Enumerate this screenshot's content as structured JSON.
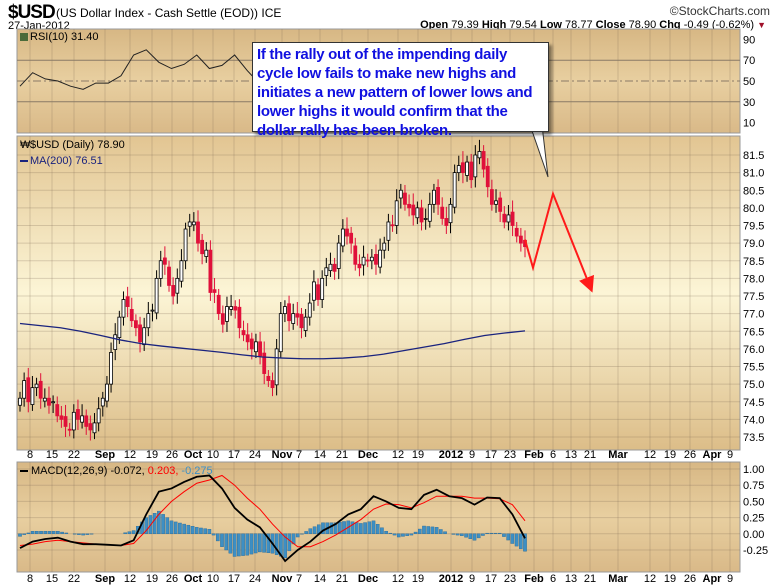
{
  "header": {
    "symbol": "$USD",
    "description": "(US Dollar Index - Cash Settle (EOD)) ICE",
    "date": "27-Jan-2012",
    "credit": "©StockCharts.com",
    "open_label": "Open",
    "open": "79.39",
    "high_label": "High",
    "high": "79.54",
    "low_label": "Low",
    "low": "78.77",
    "close_label": "Close",
    "close": "78.90",
    "chg_label": "Chg",
    "chg": "-0.49 (-0.62%)"
  },
  "annotation": {
    "text": "If the rally out of the impending daily cycle low fails to make new highs and initiates a new pattern of lower lows and lower highs it would confirm that the dollar rally has been broken.",
    "color": "#1010e0"
  },
  "chart_data": [
    {
      "type": "line",
      "panel": "rsi",
      "legend": "RSI(10) 31.40",
      "ylim": [
        0,
        100
      ],
      "yticks": [
        90,
        70,
        50,
        30,
        10
      ],
      "reference_lines": [
        70,
        50,
        30
      ],
      "values": [
        45,
        58,
        52,
        50,
        45,
        42,
        48,
        48,
        55,
        75,
        80,
        68,
        62,
        66,
        75,
        62,
        65,
        75,
        60,
        47,
        45,
        38,
        35,
        45,
        55,
        50,
        58,
        60,
        55,
        62,
        65,
        58,
        60,
        65,
        62,
        60,
        55,
        50,
        42,
        36,
        31.4
      ]
    },
    {
      "type": "candlestick",
      "panel": "price",
      "title": "$USD (Daily) 78.90",
      "ylim": [
        73.3,
        81.9
      ],
      "yticks": [
        "81.5",
        "81.0",
        "80.5",
        "80.0",
        "79.5",
        "79.0",
        "78.5",
        "78.0",
        "77.5",
        "77.0",
        "76.5",
        "76.0",
        "75.5",
        "75.0",
        "74.5",
        "74.0",
        "73.5"
      ],
      "close": [
        74.6,
        75.1,
        74.5,
        74.9,
        75.0,
        74.6,
        74.6,
        74.4,
        74.5,
        74.1,
        74.0,
        73.8,
        73.7,
        74.2,
        74.0,
        74.1,
        73.8,
        73.7,
        73.9,
        74.3,
        74.6,
        75.0,
        75.9,
        76.4,
        76.9,
        77.4,
        77.2,
        76.8,
        76.6,
        76.2,
        76.6,
        77.0,
        77.1,
        78.0,
        78.5,
        78.4,
        77.8,
        77.5,
        78.0,
        78.5,
        79.4,
        79.6,
        79.6,
        79.0,
        78.7,
        78.8,
        77.6,
        77.6,
        77.0,
        76.7,
        77.2,
        77.2,
        77.1,
        76.6,
        76.4,
        76.2,
        76.0,
        76.2,
        75.8,
        75.3,
        75.1,
        74.9,
        76.0,
        77.0,
        77.2,
        76.8,
        77.0,
        76.9,
        76.6,
        76.9,
        77.3,
        77.9,
        77.4,
        78.0,
        78.3,
        78.4,
        78.2,
        79.0,
        79.4,
        79.2,
        79.0,
        78.4,
        78.3,
        78.6,
        78.5,
        78.6,
        78.4,
        78.8,
        79.0,
        79.6,
        79.5,
        80.2,
        80.5,
        80.1,
        80.0,
        79.8,
        80.0,
        79.6,
        79.7,
        80.1,
        80.5,
        80.1,
        79.7,
        79.5,
        80.1,
        81.0,
        81.2,
        81.0,
        81.3,
        80.8,
        81.5,
        81.6,
        81.1,
        80.6,
        80.1,
        80.2,
        79.9,
        79.6,
        79.8,
        79.5,
        79.2,
        79.0,
        78.9
      ],
      "ma200": {
        "legend": "MA(200) 76.51",
        "color": "#1a237e",
        "values": [
          76.72,
          76.66,
          76.6,
          76.5,
          76.38,
          76.25,
          76.15,
          76.08,
          76.02,
          75.96,
          75.9,
          75.83,
          75.77,
          75.74,
          75.72,
          75.72,
          75.74,
          75.78,
          75.85,
          75.95,
          76.05,
          76.15,
          76.27,
          76.38,
          76.45,
          76.51
        ]
      },
      "projection": {
        "color": "#ff1a1a",
        "values": [
          79.1,
          78.3,
          80.4,
          77.7
        ]
      }
    },
    {
      "type": "macd",
      "panel": "macd",
      "legend_prefix": "MACD(12,26,9)",
      "legend_macd": "-0.072,",
      "legend_signal": " 0.203,",
      "legend_hist": " -0.275",
      "ylim": [
        -0.55,
        1.07
      ],
      "yticks": [
        "1.00",
        "0.75",
        "0.50",
        "0.25",
        "0.00",
        "-0.25"
      ],
      "macd": [
        -0.22,
        -0.12,
        -0.08,
        -0.06,
        -0.12,
        -0.16,
        -0.16,
        -0.17,
        -0.18,
        -0.1,
        0.3,
        0.65,
        0.7,
        0.8,
        0.88,
        0.9,
        0.7,
        0.4,
        0.22,
        0.1,
        -0.15,
        -0.42,
        -0.25,
        -0.12,
        0.05,
        0.15,
        0.3,
        0.38,
        0.58,
        0.5,
        0.4,
        0.38,
        0.6,
        0.68,
        0.58,
        0.55,
        0.45,
        0.56,
        0.55,
        0.3,
        -0.07
      ],
      "signal": [
        -0.18,
        -0.16,
        -0.12,
        -0.1,
        -0.12,
        -0.14,
        -0.16,
        -0.17,
        -0.18,
        -0.15,
        0.05,
        0.3,
        0.5,
        0.65,
        0.78,
        0.83,
        0.9,
        0.75,
        0.55,
        0.38,
        0.15,
        -0.05,
        -0.2,
        -0.2,
        -0.12,
        -0.02,
        0.1,
        0.22,
        0.38,
        0.46,
        0.45,
        0.4,
        0.48,
        0.58,
        0.58,
        0.58,
        0.55,
        0.55,
        0.54,
        0.45,
        0.2
      ],
      "colors": {
        "macd": "#000000",
        "signal": "#ff0000",
        "hist": "#3d8fc4"
      }
    }
  ],
  "x_axis": [
    "8",
    "15",
    "22",
    "Sep",
    "12",
    "19",
    "26",
    "Oct",
    "10",
    "17",
    "24",
    "Nov",
    "7",
    "14",
    "21",
    "Dec",
    "12",
    "19",
    "2012",
    "9",
    "17",
    "23",
    "Feb",
    "6",
    "13",
    "21",
    "Mar",
    "12",
    "19",
    "26",
    "Apr",
    "9"
  ]
}
